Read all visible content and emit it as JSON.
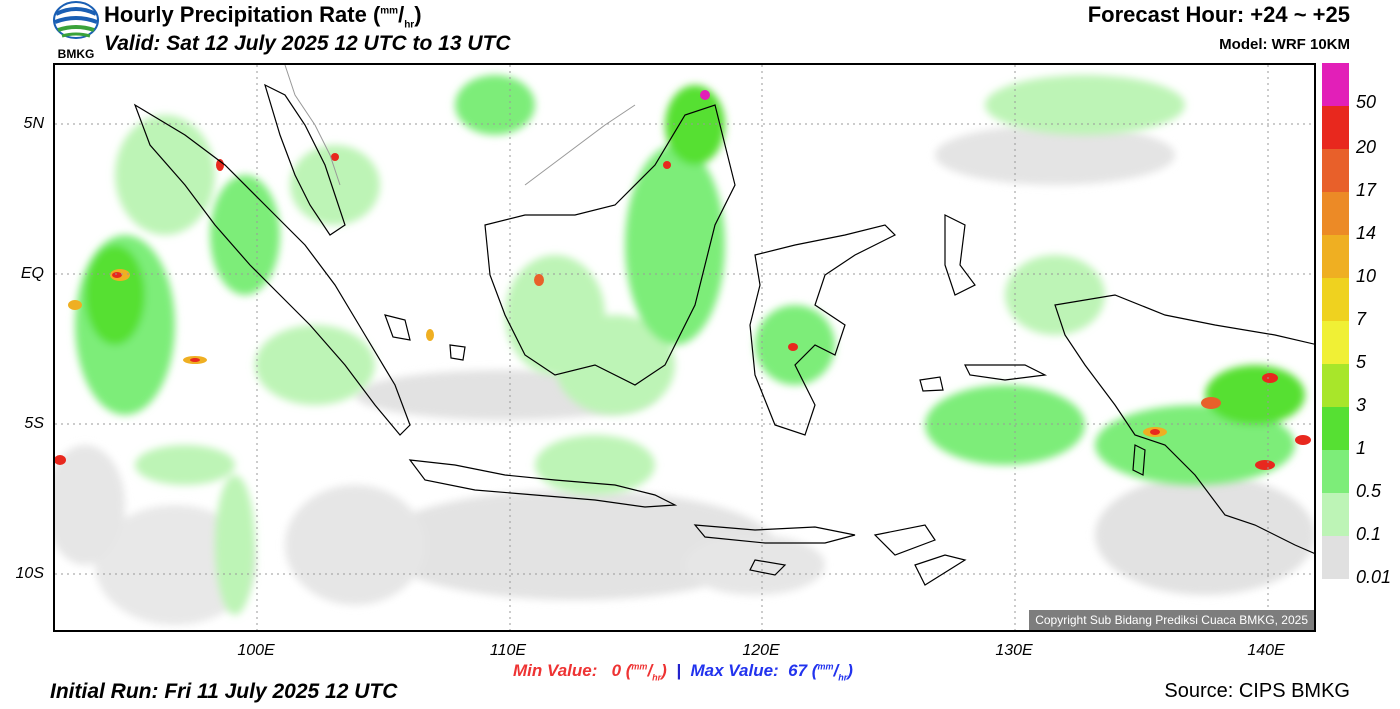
{
  "header": {
    "title_main": "Hourly Precipitation Rate (",
    "title_unit_top": "mm",
    "title_unit_sep": "/",
    "title_unit_bot": "hr",
    "title_close": ")",
    "valid": "Valid: Sat 12 July 2025 12 UTC to 13 UTC",
    "forecast_hour": "Forecast Hour: +24 ~ +25",
    "model": "Model: WRF 10KM",
    "logo_text": "BMKG"
  },
  "map": {
    "lat_labels": [
      "5N",
      "EQ",
      "5S",
      "10S"
    ],
    "lon_labels": [
      "100E",
      "110E",
      "120E",
      "130E",
      "140E"
    ],
    "copyright": "Copyright Sub Bidang Prediksi Cuaca BMKG, 2025"
  },
  "legend": {
    "labels": [
      "50",
      "20",
      "17",
      "14",
      "10",
      "7",
      "5",
      "3",
      "1",
      "0.5",
      "0.1",
      "0.01"
    ],
    "colors": [
      "#e21fb8",
      "#e8281e",
      "#e8602a",
      "#ec8a26",
      "#efaf22",
      "#efd21f",
      "#f0f035",
      "#a8e62a",
      "#56e033",
      "#7ded79",
      "#bdf4b6",
      "#e0e0e0"
    ]
  },
  "footer": {
    "min_label": "Min Value:",
    "min_value": "0",
    "max_label": "Max Value:",
    "max_value": "67",
    "unit_top": "mm",
    "unit_bot": "hr",
    "initial_run": "Initial Run: Fri 11 July 2025 12 UTC",
    "source": "Source: CIPS BMKG"
  }
}
